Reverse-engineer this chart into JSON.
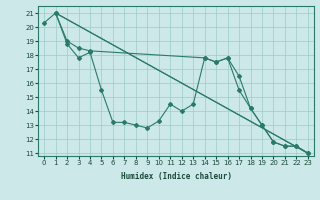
{
  "xlabel": "Humidex (Indice chaleur)",
  "ylabel": "",
  "bg_color": "#cce8e8",
  "grid_color": "#99cccc",
  "line_color": "#2a7a6a",
  "series": [
    {
      "x": [
        1,
        2,
        3,
        4,
        5,
        6,
        7,
        8,
        9,
        10,
        11,
        12,
        13,
        14,
        15,
        16,
        17,
        18,
        19,
        20,
        21,
        22,
        23
      ],
      "y": [
        21.0,
        18.8,
        17.8,
        18.2,
        15.5,
        13.2,
        13.2,
        13.0,
        12.8,
        13.3,
        14.5,
        14.0,
        14.5,
        17.8,
        17.5,
        17.8,
        16.5,
        14.2,
        13.0,
        11.8,
        11.5,
        11.5,
        11.0
      ]
    },
    {
      "x": [
        0,
        1,
        2,
        3,
        4,
        14,
        15,
        16,
        17,
        18,
        19,
        20,
        21,
        22,
        23
      ],
      "y": [
        20.3,
        21.0,
        19.0,
        18.5,
        18.3,
        17.8,
        17.5,
        17.8,
        15.5,
        14.2,
        13.0,
        11.8,
        11.5,
        11.5,
        11.0
      ]
    },
    {
      "x": [
        1,
        4,
        23
      ],
      "y": [
        21.0,
        18.3,
        11.0
      ]
    },
    {
      "x": [
        1,
        4,
        23
      ],
      "y": [
        21.0,
        18.3,
        11.0
      ]
    }
  ],
  "ylim": [
    10.8,
    21.5
  ],
  "xlim": [
    -0.5,
    23.5
  ],
  "yticks": [
    11,
    12,
    13,
    14,
    15,
    16,
    17,
    18,
    19,
    20,
    21
  ],
  "xticks": [
    0,
    1,
    2,
    3,
    4,
    5,
    6,
    7,
    8,
    9,
    10,
    11,
    12,
    13,
    14,
    15,
    16,
    17,
    18,
    19,
    20,
    21,
    22,
    23
  ]
}
